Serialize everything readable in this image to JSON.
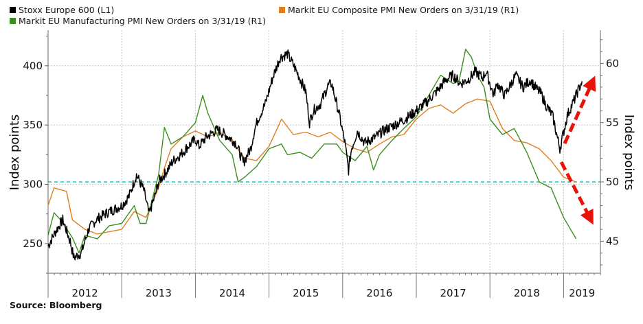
{
  "chart_data": {
    "type": "line",
    "title": "",
    "xlabel": "",
    "ylabel_left": "Index points",
    "ylabel_right": "Index points",
    "x_tick_labels": [
      "2012",
      "2013",
      "2014",
      "2015",
      "2016",
      "2017",
      "2018",
      "2019"
    ],
    "y_left_ticks": [
      250,
      300,
      350,
      400
    ],
    "y_left_range": [
      225,
      430
    ],
    "y_right_ticks": [
      45,
      50,
      55,
      60
    ],
    "y_right_range": [
      42.3,
      62.8
    ],
    "x_range": [
      2012.0,
      2019.5
    ],
    "reference_line": {
      "axis": "right",
      "value": 50,
      "style": "dashed",
      "color": "#22cccc"
    },
    "legend": [
      "Stoxx Europe 600 (L1)",
      "Markit EU Composite PMI New Orders on 3/31/19 (R1)",
      "Markit EU Manufacturing PMI New Orders on 3/31/19 (R1)"
    ],
    "series": [
      {
        "name": "Stoxx Europe 600 (L1)",
        "axis": "left",
        "color": "#000000",
        "x": [
          2012.0,
          2012.1,
          2012.2,
          2012.3,
          2012.35,
          2012.45,
          2012.55,
          2012.65,
          2012.8,
          2013.0,
          2013.1,
          2013.2,
          2013.3,
          2013.37,
          2013.45,
          2013.5,
          2013.6,
          2013.7,
          2013.8,
          2013.9,
          2014.0,
          2014.05,
          2014.15,
          2014.3,
          2014.45,
          2014.55,
          2014.65,
          2014.75,
          2014.8,
          2014.85,
          2014.95,
          2015.05,
          2015.15,
          2015.25,
          2015.32,
          2015.4,
          2015.5,
          2015.55,
          2015.6,
          2015.7,
          2015.8,
          2015.85,
          2015.95,
          2016.03,
          2016.08,
          2016.12,
          2016.2,
          2016.3,
          2016.45,
          2016.55,
          2016.7,
          2016.85,
          2017.0,
          2017.15,
          2017.3,
          2017.4,
          2017.5,
          2017.6,
          2017.7,
          2017.8,
          2017.9,
          2017.95,
          2018.05,
          2018.1,
          2018.2,
          2018.35,
          2018.45,
          2018.55,
          2018.6,
          2018.7,
          2018.75,
          2018.85,
          2018.95,
          2019.05,
          2019.15,
          2019.25
        ],
        "values": [
          248,
          260,
          270,
          252,
          238,
          242,
          262,
          270,
          276,
          282,
          290,
          308,
          295,
          275,
          290,
          302,
          310,
          320,
          325,
          332,
          338,
          332,
          340,
          346,
          340,
          335,
          318,
          330,
          345,
          355,
          368,
          390,
          407,
          410,
          402,
          392,
          378,
          352,
          362,
          368,
          383,
          385,
          360,
          335,
          312,
          330,
          345,
          335,
          340,
          345,
          350,
          355,
          362,
          370,
          380,
          388,
          392,
          385,
          388,
          395,
          390,
          395,
          375,
          385,
          375,
          392,
          382,
          388,
          383,
          376,
          368,
          358,
          330,
          358,
          372,
          387
        ]
      },
      {
        "name": "Markit EU Composite PMI New Orders on 3/31/19 (R1)",
        "axis": "right",
        "color": "#e07e1e",
        "x": [
          2012.0,
          2012.08,
          2012.25,
          2012.33,
          2012.5,
          2012.67,
          2012.83,
          2013.0,
          2013.17,
          2013.33,
          2013.5,
          2013.58,
          2013.67,
          2013.83,
          2014.0,
          2014.17,
          2014.33,
          2014.5,
          2014.67,
          2014.83,
          2015.0,
          2015.17,
          2015.33,
          2015.5,
          2015.67,
          2015.83,
          2016.0,
          2016.17,
          2016.33,
          2016.5,
          2016.67,
          2016.83,
          2017.0,
          2017.17,
          2017.33,
          2017.5,
          2017.67,
          2017.83,
          2018.0,
          2018.17,
          2018.33,
          2018.5,
          2018.67,
          2018.83,
          2019.0,
          2019.17
        ],
        "values": [
          48.0,
          49.5,
          49.2,
          46.8,
          46.0,
          45.6,
          45.8,
          46.0,
          47.5,
          47.0,
          49.5,
          51.2,
          52.8,
          53.8,
          54.3,
          53.8,
          54.2,
          53.4,
          52.0,
          51.8,
          53.0,
          55.3,
          54.0,
          54.2,
          53.8,
          54.2,
          53.4,
          52.8,
          52.5,
          53.2,
          53.8,
          54.0,
          55.3,
          56.2,
          56.5,
          55.8,
          56.6,
          57.0,
          56.8,
          54.5,
          53.5,
          53.3,
          52.8,
          51.8,
          50.4,
          50.0
        ]
      },
      {
        "name": "Markit EU Manufacturing PMI New Orders on 3/31/19 (R1)",
        "axis": "right",
        "color": "#3c8e1e",
        "x": [
          2012.0,
          2012.08,
          2012.17,
          2012.33,
          2012.42,
          2012.5,
          2012.67,
          2012.83,
          2013.0,
          2013.17,
          2013.25,
          2013.33,
          2013.5,
          2013.58,
          2013.67,
          2013.83,
          2014.0,
          2014.1,
          2014.17,
          2014.33,
          2014.5,
          2014.58,
          2014.67,
          2014.83,
          2015.0,
          2015.17,
          2015.25,
          2015.42,
          2015.58,
          2015.75,
          2015.92,
          2016.0,
          2016.17,
          2016.33,
          2016.42,
          2016.5,
          2016.67,
          2016.83,
          2017.0,
          2017.17,
          2017.33,
          2017.5,
          2017.58,
          2017.67,
          2017.75,
          2017.83,
          2017.92,
          2018.0,
          2018.17,
          2018.33,
          2018.5,
          2018.67,
          2018.83,
          2019.0,
          2019.17
        ],
        "values": [
          45.5,
          47.4,
          46.8,
          45.3,
          44.0,
          45.5,
          45.2,
          46.3,
          46.5,
          48.0,
          46.5,
          46.5,
          50.6,
          54.6,
          53.2,
          53.8,
          55.0,
          57.3,
          55.8,
          53.5,
          52.3,
          50.0,
          50.4,
          51.3,
          52.8,
          53.2,
          52.3,
          52.5,
          52.0,
          53.2,
          53.2,
          52.5,
          51.8,
          53.0,
          51.0,
          52.3,
          53.5,
          54.5,
          55.5,
          57.3,
          59.0,
          58.3,
          58.5,
          61.2,
          60.5,
          59.0,
          58.0,
          55.3,
          54.0,
          54.5,
          52.5,
          50.0,
          49.5,
          47.0,
          45.2
        ]
      }
    ]
  },
  "source": "Source:  Bloomberg"
}
